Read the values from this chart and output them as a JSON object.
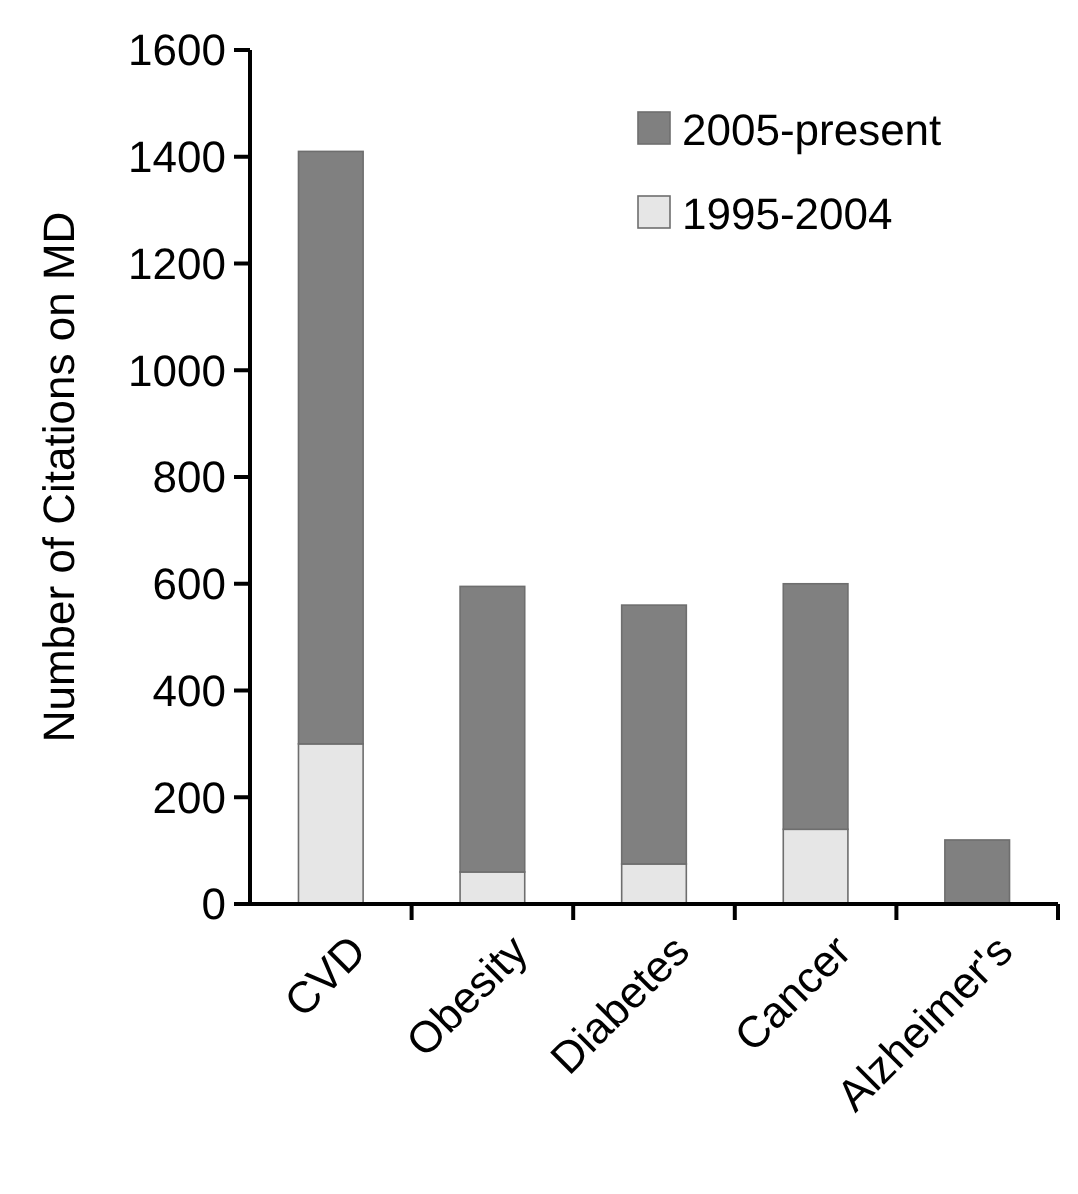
{
  "chart_data": {
    "type": "bar",
    "stacked": true,
    "ylabel": "Number of Citations on MD",
    "categories": [
      "CVD",
      "Obesity",
      "Diabetes",
      "Cancer",
      "Alzheimer's"
    ],
    "series": [
      {
        "name": "1995-2004",
        "color": "#e6e6e6",
        "values": [
          300,
          60,
          75,
          140,
          0
        ]
      },
      {
        "name": "2005-present",
        "color": "#808080",
        "values": [
          1110,
          535,
          485,
          460,
          120
        ]
      }
    ],
    "ylim": [
      0,
      1600
    ],
    "yticks": [
      0,
      200,
      400,
      600,
      800,
      1000,
      1200,
      1400,
      1600
    ],
    "grid": false,
    "legend": "top right"
  }
}
